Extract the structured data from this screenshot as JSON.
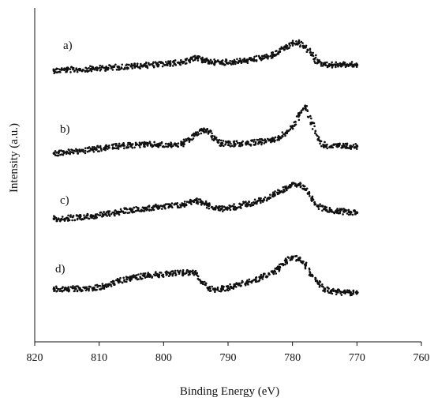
{
  "chart_data": {
    "type": "scatter",
    "title": "",
    "xlabel": "Binding  Energy (eV)",
    "ylabel": "Intensity (a.u.)",
    "xlim": [
      820,
      760
    ],
    "x_reversed": true,
    "x_ticks": [
      "820",
      "810",
      "800",
      "790",
      "780",
      "770",
      "760"
    ],
    "y_ticks_labeled": false,
    "grid": false,
    "legend": "none",
    "marker_color": "#111111",
    "x": [
      817,
      815,
      813,
      811,
      809,
      807,
      805,
      803,
      801,
      799,
      797,
      796,
      795,
      794,
      793,
      792,
      791,
      789,
      787,
      785,
      783,
      782,
      781,
      780,
      779,
      778,
      777,
      776,
      775,
      774,
      773,
      772,
      771,
      770
    ],
    "series": [
      {
        "name": "a)",
        "values": [
          0.2,
          0.25,
          0.3,
          0.35,
          0.42,
          0.5,
          0.58,
          0.66,
          0.74,
          0.82,
          0.95,
          1.1,
          1.3,
          1.15,
          1.0,
          0.95,
          0.92,
          0.98,
          1.1,
          1.3,
          1.6,
          1.9,
          2.3,
          2.65,
          2.7,
          2.3,
          1.6,
          0.95,
          0.75,
          0.7,
          0.72,
          0.74,
          0.72,
          0.7
        ]
      },
      {
        "name": "b)",
        "values": [
          0.05,
          0.15,
          0.25,
          0.4,
          0.55,
          0.7,
          0.8,
          0.85,
          0.83,
          0.8,
          0.9,
          1.3,
          1.8,
          2.15,
          2.0,
          1.4,
          0.95,
          0.9,
          0.95,
          1.1,
          1.3,
          1.5,
          1.9,
          2.5,
          3.5,
          4.3,
          2.8,
          1.3,
          0.75,
          0.65,
          0.7,
          0.72,
          0.7,
          0.7
        ]
      },
      {
        "name": "c)",
        "values": [
          0.35,
          0.4,
          0.5,
          0.6,
          0.75,
          0.95,
          1.15,
          1.3,
          1.4,
          1.5,
          1.6,
          1.85,
          2.05,
          1.85,
          1.55,
          1.3,
          1.25,
          1.4,
          1.7,
          2.0,
          2.4,
          2.75,
          3.1,
          3.55,
          3.45,
          3.0,
          2.2,
          1.5,
          1.25,
          1.1,
          1.05,
          1.0,
          0.95,
          0.9
        ]
      },
      {
        "name": "d)",
        "values": [
          0.5,
          0.5,
          0.52,
          0.55,
          0.8,
          1.2,
          1.5,
          1.7,
          1.8,
          1.9,
          1.95,
          2.0,
          1.9,
          1.1,
          0.6,
          0.45,
          0.5,
          0.75,
          1.1,
          1.5,
          2.0,
          2.45,
          2.95,
          3.35,
          3.25,
          2.7,
          1.75,
          1.0,
          0.5,
          0.3,
          0.22,
          0.2,
          0.18,
          0.15
        ]
      }
    ]
  }
}
